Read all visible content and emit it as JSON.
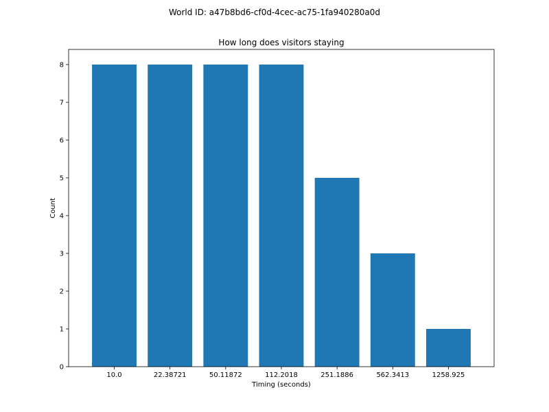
{
  "suptitle": "World ID: a47b8bd6-cf0d-4cec-ac75-1fa940280a0d",
  "chart_data": {
    "type": "bar",
    "title": "How long does visitors staying",
    "xlabel": "Timing (seconds)",
    "ylabel": "Count",
    "categories": [
      "10.0",
      "22.38721",
      "50.11872",
      "112.2018",
      "251.1886",
      "562.3413",
      "1258.925"
    ],
    "values": [
      8,
      8,
      8,
      8,
      5,
      3,
      1
    ],
    "ylim": [
      0,
      8.4
    ],
    "yticks": [
      "0",
      "1",
      "2",
      "3",
      "4",
      "5",
      "6",
      "7",
      "8"
    ],
    "grid": false,
    "bar_color": "#1f77b4"
  }
}
